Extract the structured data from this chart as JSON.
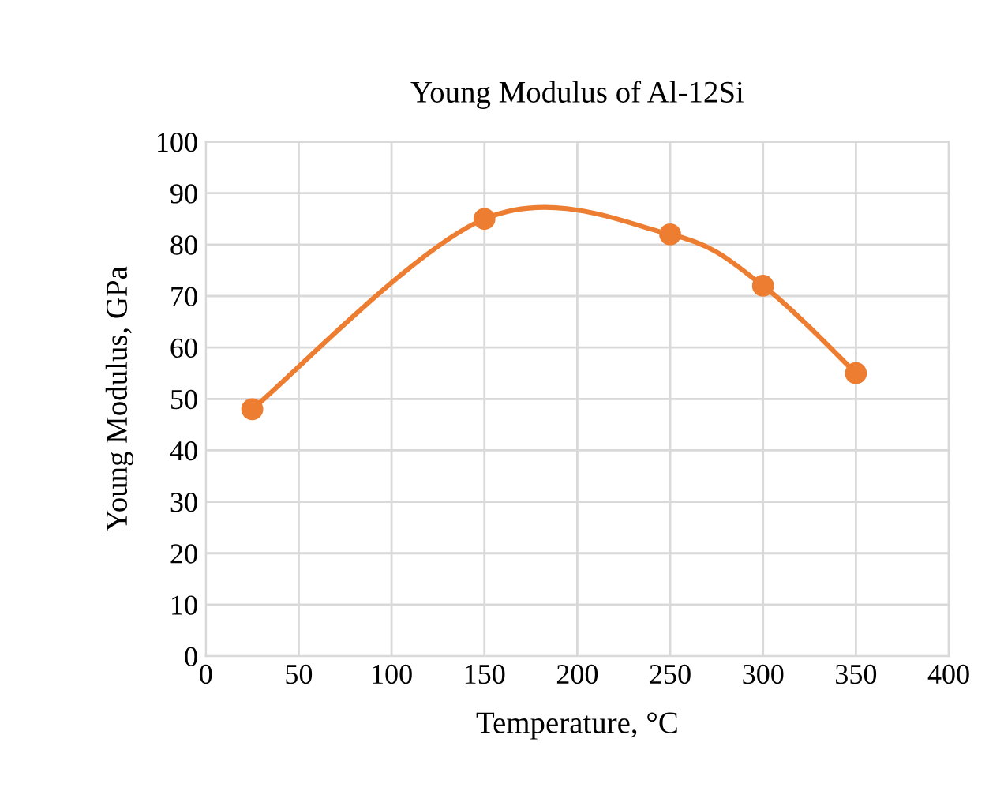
{
  "chart_data": {
    "type": "line",
    "title": "Young Modulus of Al-12Si",
    "xlabel": "Temperature, °C",
    "ylabel": "Young Modulus, GPa",
    "x": [
      25,
      150,
      250,
      300,
      350
    ],
    "series": [
      {
        "color": "#ed7d31",
        "values": [
          48,
          85,
          82,
          72,
          55
        ]
      }
    ],
    "xlim": [
      0,
      400
    ],
    "xticks": [
      0,
      50,
      100,
      150,
      200,
      250,
      300,
      350,
      400
    ],
    "ylim": [
      0,
      100
    ],
    "yticks": [
      0,
      10,
      20,
      30,
      40,
      50,
      60,
      70,
      80,
      90,
      100
    ],
    "grid": true,
    "marker": "circle",
    "line_style": "solid"
  }
}
